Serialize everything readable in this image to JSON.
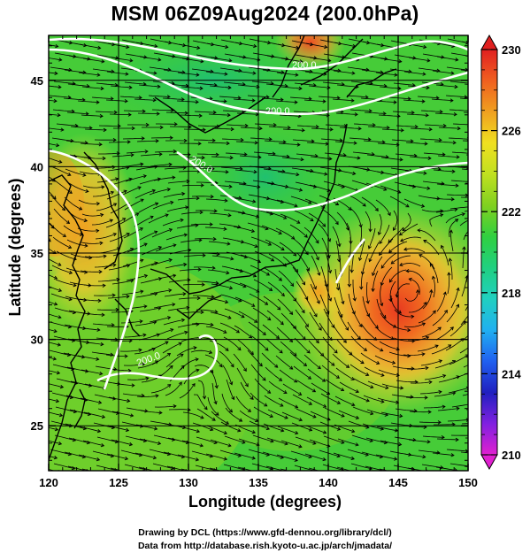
{
  "title": "MSM 06Z09Aug2024 (200.0hPa)",
  "xaxis": {
    "label": "Longitude (degrees)",
    "ticks": [
      120,
      125,
      130,
      135,
      140,
      145,
      150
    ],
    "range": [
      120,
      150
    ]
  },
  "yaxis": {
    "label": "Latitude  (degrees)",
    "ticks": [
      25,
      30,
      35,
      40,
      45
    ],
    "range": [
      22.4,
      47.6
    ]
  },
  "colorbar": {
    "ticks": [
      230,
      226,
      222,
      218,
      214,
      210
    ],
    "range": [
      210,
      230
    ],
    "colors": [
      "#e020d0",
      "#8020e0",
      "#2020c0",
      "#2060f0",
      "#20b0f0",
      "#20d0c0",
      "#20d080",
      "#30d040",
      "#80d020",
      "#c0e020",
      "#f0e020",
      "#f0a020",
      "#f06020",
      "#e02020"
    ]
  },
  "contour_labels": [
    "200.0",
    "200.0",
    "200.0",
    "200.0"
  ],
  "credits": {
    "line1": "Drawing by DCL (https://www.gfd-dennou.org/library/dcl/)",
    "line2": "Data from http://database.rish.kyoto-u.ac.jp/arch/jmadata/"
  }
}
